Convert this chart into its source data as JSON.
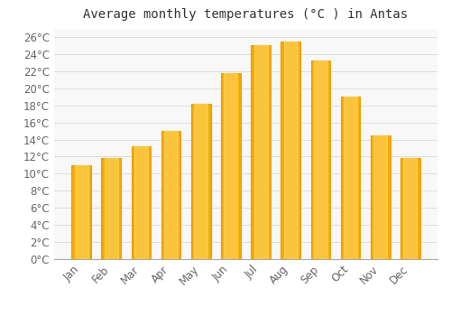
{
  "title": "Average monthly temperatures (°C ) in Antas",
  "months": [
    "Jan",
    "Feb",
    "Mar",
    "Apr",
    "May",
    "Jun",
    "Jul",
    "Aug",
    "Sep",
    "Oct",
    "Nov",
    "Dec"
  ],
  "temperatures": [
    11.0,
    11.8,
    13.2,
    15.0,
    18.2,
    21.8,
    25.0,
    25.5,
    23.2,
    19.0,
    14.5,
    11.8
  ],
  "bar_color_bottom": "#F5A800",
  "bar_color_top": "#FFD966",
  "bar_edge_color": "#E8A000",
  "background_color": "#FFFFFF",
  "plot_bg_color": "#F8F8F8",
  "grid_color": "#DDDDDD",
  "text_color": "#666666",
  "title_color": "#333333",
  "ylim": [
    0,
    27
  ],
  "ytick_step": 2,
  "title_fontsize": 10,
  "tick_fontsize": 8.5
}
